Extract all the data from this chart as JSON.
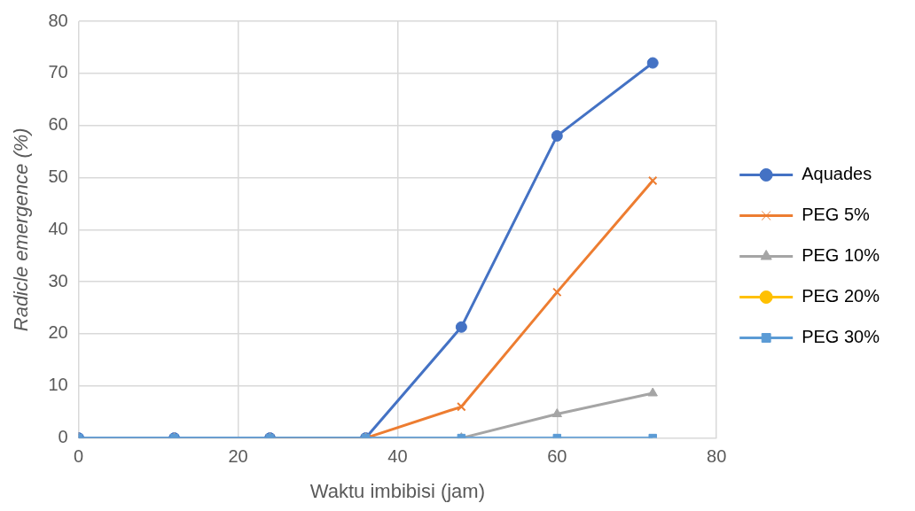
{
  "chart_data": {
    "type": "line",
    "xlabel": "Waktu imbibisi (jam)",
    "ylabel": "Radicle emergence (%)",
    "x": [
      0,
      12,
      24,
      36,
      48,
      60,
      72
    ],
    "series": [
      {
        "name": "Aquades",
        "color": "#4472c4",
        "marker": "circle",
        "values": [
          0,
          0,
          0,
          0,
          21.3,
          58,
          72
        ]
      },
      {
        "name": "PEG 5%",
        "color": "#ed7d31",
        "marker": "cross",
        "values": [
          null,
          null,
          0,
          0,
          6,
          28,
          49.4
        ]
      },
      {
        "name": "PEG 10%",
        "color": "#a5a5a5",
        "marker": "triangle",
        "values": [
          0,
          0,
          0,
          0,
          0,
          4.6,
          8.6
        ]
      },
      {
        "name": "PEG 20%",
        "color": "#ffc000",
        "marker": "circle",
        "values": [
          null,
          null,
          null,
          null,
          null,
          null,
          null
        ]
      },
      {
        "name": "PEG 30%",
        "color": "#5b9bd5",
        "marker": "square",
        "values": [
          0,
          0,
          0,
          0,
          0,
          0,
          0
        ]
      }
    ],
    "xlim": [
      0,
      80
    ],
    "xticks": [
      0,
      20,
      40,
      60,
      80
    ],
    "ylim": [
      0,
      80
    ],
    "yticks": [
      0,
      10,
      20,
      30,
      40,
      50,
      60,
      70,
      80
    ],
    "grid": true,
    "legend": "right",
    "line_style": "solid"
  }
}
